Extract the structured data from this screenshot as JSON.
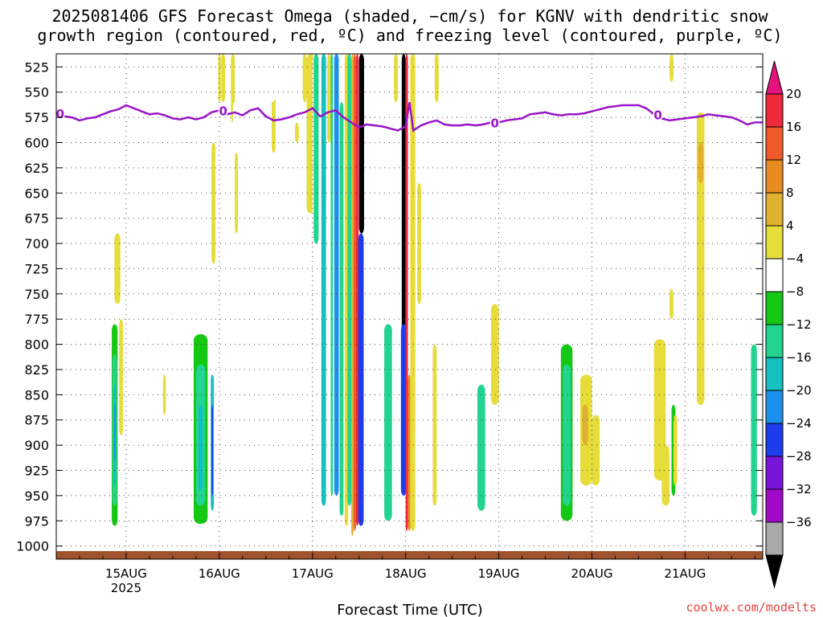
{
  "chart_data": {
    "type": "heatmap",
    "title_lines": [
      "2025081406 GFS Forecast Omega (shaded, −cm/s) for KGNV with dendritic snow",
      "growth region (contoured, red, ºC) and freezing level (contoured, purple, ºC)"
    ],
    "xlabel": "Forecast Time (UTC)",
    "credit": "coolwx.com/modelts",
    "y_axis": {
      "reversed": true,
      "range": [
        1013,
        512
      ],
      "ticks": [
        525,
        550,
        575,
        600,
        625,
        650,
        675,
        700,
        725,
        750,
        775,
        800,
        825,
        850,
        875,
        900,
        925,
        950,
        975,
        1000
      ]
    },
    "x_axis": {
      "range_hours": [
        0,
        182
      ],
      "ticks": [
        {
          "hour": 18,
          "label": "15AUG",
          "sub": "2025"
        },
        {
          "hour": 42,
          "label": "16AUG",
          "sub": ""
        },
        {
          "hour": 66,
          "label": "17AUG",
          "sub": ""
        },
        {
          "hour": 90,
          "label": "18AUG",
          "sub": ""
        },
        {
          "hour": 114,
          "label": "19AUG",
          "sub": ""
        },
        {
          "hour": 138,
          "label": "20AUG",
          "sub": ""
        },
        {
          "hour": 162,
          "label": "21AUG",
          "sub": ""
        }
      ]
    },
    "grid": true,
    "colorbar": {
      "labels": [
        "20",
        "16",
        "12",
        "8",
        "4",
        "−4",
        "−8",
        "−12",
        "−16",
        "−20",
        "−24",
        "−28",
        "−32",
        "−36"
      ],
      "top_color": "#e0147a",
      "bottom_color": "#000000",
      "colors": [
        "#ee2a3c",
        "#f05a28",
        "#e88a20",
        "#e0b030",
        "#e6dc3a",
        "#ffffff",
        "#14c814",
        "#22d490",
        "#16c0c0",
        "#1c90ee",
        "#1c3cee",
        "#7a14d8",
        "#a00ac8",
        "#a8a8a8"
      ]
    },
    "freezing_level": {
      "color": "#9a14c8",
      "label": "0",
      "points": [
        [
          0,
          571
        ],
        [
          2,
          574
        ],
        [
          4,
          575
        ],
        [
          6,
          578
        ],
        [
          8,
          576
        ],
        [
          10,
          575
        ],
        [
          12,
          572
        ],
        [
          14,
          569
        ],
        [
          16,
          567
        ],
        [
          18,
          563
        ],
        [
          20,
          566
        ],
        [
          22,
          569
        ],
        [
          24,
          572
        ],
        [
          26,
          571
        ],
        [
          28,
          573
        ],
        [
          30,
          576
        ],
        [
          32,
          577
        ],
        [
          34,
          575
        ],
        [
          36,
          577
        ],
        [
          38,
          575
        ],
        [
          40,
          570
        ],
        [
          42,
          568
        ],
        [
          44,
          572
        ],
        [
          46,
          570
        ],
        [
          48,
          573
        ],
        [
          50,
          568
        ],
        [
          52,
          566
        ],
        [
          54,
          574
        ],
        [
          56,
          578
        ],
        [
          58,
          577
        ],
        [
          60,
          575
        ],
        [
          62,
          572
        ],
        [
          64,
          570
        ],
        [
          66,
          566
        ],
        [
          67,
          570
        ],
        [
          68,
          574
        ],
        [
          70,
          570
        ],
        [
          72,
          568
        ],
        [
          74,
          575
        ],
        [
          76,
          580
        ],
        [
          78,
          585
        ],
        [
          80,
          582
        ],
        [
          82,
          583
        ],
        [
          84,
          584
        ],
        [
          86,
          586
        ],
        [
          88,
          588
        ],
        [
          90,
          584
        ],
        [
          91,
          560
        ],
        [
          92,
          588
        ],
        [
          94,
          583
        ],
        [
          96,
          580
        ],
        [
          98,
          578
        ],
        [
          100,
          582
        ],
        [
          102,
          583
        ],
        [
          104,
          583
        ],
        [
          106,
          582
        ],
        [
          108,
          583
        ],
        [
          110,
          582
        ],
        [
          112,
          580
        ],
        [
          114,
          580
        ],
        [
          116,
          578
        ],
        [
          118,
          577
        ],
        [
          120,
          576
        ],
        [
          122,
          572
        ],
        [
          124,
          571
        ],
        [
          126,
          570
        ],
        [
          128,
          572
        ],
        [
          130,
          573
        ],
        [
          132,
          572
        ],
        [
          134,
          572
        ],
        [
          136,
          571
        ],
        [
          138,
          569
        ],
        [
          140,
          567
        ],
        [
          142,
          565
        ],
        [
          144,
          564
        ],
        [
          146,
          563
        ],
        [
          148,
          563
        ],
        [
          150,
          563
        ],
        [
          152,
          566
        ],
        [
          154,
          572
        ],
        [
          156,
          576
        ],
        [
          158,
          578
        ],
        [
          160,
          577
        ],
        [
          162,
          576
        ],
        [
          164,
          575
        ],
        [
          166,
          574
        ],
        [
          168,
          572
        ],
        [
          170,
          573
        ],
        [
          172,
          574
        ],
        [
          174,
          575
        ],
        [
          176,
          578
        ],
        [
          178,
          582
        ],
        [
          180,
          580
        ],
        [
          182,
          580
        ]
      ],
      "label_hours": [
        1,
        43,
        113,
        155
      ]
    },
    "terrain_color": "#a0522d",
    "shaded_regions": [
      {
        "cls": "-4",
        "x0": 14.0,
        "x1": 16.0,
        "p0": 765,
        "p1": 988
      },
      {
        "cls": "-8",
        "x0": 14.3,
        "x1": 15.8,
        "p0": 780,
        "p1": 980
      },
      {
        "cls": "-12",
        "x0": 14.5,
        "x1": 15.6,
        "p0": 810,
        "p1": 960
      },
      {
        "cls": "-16",
        "x0": 14.7,
        "x1": 15.4,
        "p0": 840,
        "p1": 940
      },
      {
        "cls": "-20",
        "x0": 14.9,
        "x1": 15.3,
        "p0": 860,
        "p1": 915
      },
      {
        "cls": "4",
        "x0": 15.0,
        "x1": 16.5,
        "p0": 690,
        "p1": 760
      },
      {
        "cls": "4",
        "x0": 16.2,
        "x1": 17.2,
        "p0": 775,
        "p1": 890
      },
      {
        "cls": "4",
        "x0": 27.5,
        "x1": 28.2,
        "p0": 830,
        "p1": 870
      },
      {
        "cls": "-4",
        "x0": 35.0,
        "x1": 39.5,
        "p0": 770,
        "p1": 988
      },
      {
        "cls": "-8",
        "x0": 35.4,
        "x1": 39.0,
        "p0": 790,
        "p1": 978
      },
      {
        "cls": "-12",
        "x0": 36.0,
        "x1": 38.4,
        "p0": 820,
        "p1": 960
      },
      {
        "cls": "-16",
        "x0": 36.6,
        "x1": 37.8,
        "p0": 860,
        "p1": 945
      },
      {
        "cls": "-4",
        "x0": 39.6,
        "x1": 41.2,
        "p0": 790,
        "p1": 975
      },
      {
        "cls": "-16",
        "x0": 39.8,
        "x1": 40.6,
        "p0": 830,
        "p1": 965
      },
      {
        "cls": "-24",
        "x0": 40.0,
        "x1": 40.4,
        "p0": 860,
        "p1": 950
      },
      {
        "cls": "4",
        "x0": 40.0,
        "x1": 41.0,
        "p0": 600,
        "p1": 720
      },
      {
        "cls": "-4",
        "x0": 41.5,
        "x1": 42.7,
        "p0": 512,
        "p1": 960
      },
      {
        "cls": "4",
        "x0": 41.7,
        "x1": 42.4,
        "p0": 512,
        "p1": 560
      },
      {
        "cls": "4",
        "x0": 42.5,
        "x1": 43.5,
        "p0": 512,
        "p1": 560
      },
      {
        "cls": "-4",
        "x0": 44.0,
        "x1": 45.0,
        "p0": 512,
        "p1": 570
      },
      {
        "cls": "-4",
        "x0": 44.5,
        "x1": 45.5,
        "p0": 640,
        "p1": 700
      },
      {
        "cls": "4",
        "x0": 45.0,
        "x1": 46.0,
        "p0": 512,
        "p1": 580
      },
      {
        "cls": "-4",
        "x0": 45.5,
        "x1": 46.5,
        "p0": 560,
        "p1": 610
      },
      {
        "cls": "-4",
        "x0": 45.0,
        "x1": 46.0,
        "p0": 680,
        "p1": 710
      },
      {
        "cls": "4",
        "x0": 46.0,
        "x1": 46.8,
        "p0": 610,
        "p1": 690
      },
      {
        "cls": "-4",
        "x0": 47.0,
        "x1": 48.2,
        "p0": 560,
        "p1": 760
      },
      {
        "cls": "-4",
        "x0": 49.0,
        "x1": 50.0,
        "p0": 512,
        "p1": 590
      },
      {
        "cls": "-4",
        "x0": 52.0,
        "x1": 53.5,
        "p0": 580,
        "p1": 640
      },
      {
        "cls": "4",
        "x0": 55.5,
        "x1": 56.5,
        "p0": 540,
        "p1": 610
      },
      {
        "cls": "-4",
        "x0": 54.5,
        "x1": 56.5,
        "p0": 512,
        "p1": 560
      },
      {
        "cls": "-4",
        "x0": 57.5,
        "x1": 58.5,
        "p0": 530,
        "p1": 570
      },
      {
        "cls": "-4",
        "x0": 58.0,
        "x1": 59.0,
        "p0": 890,
        "p1": 940
      },
      {
        "cls": "4",
        "x0": 61.5,
        "x1": 62.5,
        "p0": 580,
        "p1": 600
      },
      {
        "cls": "-4",
        "x0": 62.0,
        "x1": 63.0,
        "p0": 620,
        "p1": 680
      },
      {
        "cls": "4",
        "x0": 63.5,
        "x1": 64.5,
        "p0": 512,
        "p1": 560
      },
      {
        "cls": "-4",
        "x0": 63.0,
        "x1": 64.5,
        "p0": 750,
        "p1": 985
      },
      {
        "cls": "4",
        "x0": 64.5,
        "x1": 66.5,
        "p0": 512,
        "p1": 670
      },
      {
        "cls": "-4",
        "x0": 66.0,
        "x1": 68.0,
        "p0": 512,
        "p1": 988
      },
      {
        "cls": "-12",
        "x0": 66.3,
        "x1": 67.6,
        "p0": 512,
        "p1": 700
      },
      {
        "cls": "-4",
        "x0": 68.0,
        "x1": 69.8,
        "p0": 512,
        "p1": 970
      },
      {
        "cls": "-16",
        "x0": 68.3,
        "x1": 69.5,
        "p0": 512,
        "p1": 960
      },
      {
        "cls": "4",
        "x0": 69.8,
        "x1": 70.8,
        "p0": 512,
        "p1": 600
      },
      {
        "cls": "-4",
        "x0": 70.5,
        "x1": 71.5,
        "p0": 760,
        "p1": 980
      },
      {
        "cls": "-12",
        "x0": 70.7,
        "x1": 71.3,
        "p0": 512,
        "p1": 950
      },
      {
        "cls": "-20",
        "x0": 71.6,
        "x1": 72.8,
        "p0": 512,
        "p1": 950
      },
      {
        "cls": "-4",
        "x0": 72.8,
        "x1": 74.2,
        "p0": 512,
        "p1": 985
      },
      {
        "cls": "-12",
        "x0": 73.0,
        "x1": 74.0,
        "p0": 560,
        "p1": 970
      },
      {
        "cls": "4",
        "x0": 74.3,
        "x1": 75.2,
        "p0": 512,
        "p1": 980
      },
      {
        "cls": "-12",
        "x0": 75.0,
        "x1": 76.0,
        "p0": 512,
        "p1": 960
      },
      {
        "cls": "8",
        "x0": 76.0,
        "x1": 76.6,
        "p0": 512,
        "p1": 990
      },
      {
        "cls": "16",
        "x0": 76.6,
        "x1": 77.2,
        "p0": 512,
        "p1": 985
      },
      {
        "cls": "20",
        "x0": 77.2,
        "x1": 77.9,
        "p0": 512,
        "p1": 980
      },
      {
        "cls": "-36",
        "x0": 78.0,
        "x1": 79.3,
        "p0": 512,
        "p1": 690
      },
      {
        "cls": "-24",
        "x0": 77.8,
        "x1": 79.2,
        "p0": 690,
        "p1": 980
      },
      {
        "cls": "-4",
        "x0": 79.3,
        "x1": 80.0,
        "p0": 512,
        "p1": 560
      },
      {
        "cls": "-4",
        "x0": 80.0,
        "x1": 81.0,
        "p0": 880,
        "p1": 975
      },
      {
        "cls": "-4",
        "x0": 81.5,
        "x1": 82.5,
        "p0": 500,
        "p1": 560
      },
      {
        "cls": "-4",
        "x0": 82.0,
        "x1": 83.0,
        "p0": 600,
        "p1": 650
      },
      {
        "cls": "-4",
        "x0": 84.0,
        "x1": 87.0,
        "p0": 630,
        "p1": 985
      },
      {
        "cls": "-12",
        "x0": 84.5,
        "x1": 86.5,
        "p0": 780,
        "p1": 975
      },
      {
        "cls": "4",
        "x0": 87.0,
        "x1": 88.0,
        "p0": 512,
        "p1": 560
      },
      {
        "cls": "-4",
        "x0": 87.0,
        "x1": 89.0,
        "p0": 560,
        "p1": 990
      },
      {
        "cls": "-4",
        "x0": 88.0,
        "x1": 89.0,
        "p0": 660,
        "p1": 740
      },
      {
        "cls": "-36",
        "x0": 89.0,
        "x1": 90.0,
        "p0": 512,
        "p1": 900
      },
      {
        "cls": "-24",
        "x0": 88.8,
        "x1": 90.2,
        "p0": 780,
        "p1": 950
      },
      {
        "cls": "20",
        "x0": 90.0,
        "x1": 90.6,
        "p0": 512,
        "p1": 985
      },
      {
        "cls": "12",
        "x0": 90.6,
        "x1": 91.3,
        "p0": 830,
        "p1": 985
      },
      {
        "cls": "4",
        "x0": 91.2,
        "x1": 92.5,
        "p0": 512,
        "p1": 985
      },
      {
        "cls": "-4",
        "x0": 92.5,
        "x1": 93.5,
        "p0": 880,
        "p1": 940
      },
      {
        "cls": "4",
        "x0": 93.0,
        "x1": 94.0,
        "p0": 640,
        "p1": 760
      },
      {
        "cls": "-4",
        "x0": 94.0,
        "x1": 95.0,
        "p0": 800,
        "p1": 850
      },
      {
        "cls": "-4",
        "x0": 95.0,
        "x1": 96.0,
        "p0": 640,
        "p1": 810
      },
      {
        "cls": "4",
        "x0": 97.0,
        "x1": 98.0,
        "p0": 800,
        "p1": 960
      },
      {
        "cls": "4",
        "x0": 97.5,
        "x1": 98.5,
        "p0": 512,
        "p1": 560
      },
      {
        "cls": "-4",
        "x0": 108.0,
        "x1": 111.0,
        "p0": 780,
        "p1": 985
      },
      {
        "cls": "-12",
        "x0": 108.5,
        "x1": 110.5,
        "p0": 840,
        "p1": 965
      },
      {
        "cls": "-4",
        "x0": 112.0,
        "x1": 113.0,
        "p0": 920,
        "p1": 960
      },
      {
        "cls": "4",
        "x0": 112.0,
        "x1": 114.0,
        "p0": 760,
        "p1": 860
      },
      {
        "cls": "-4",
        "x0": 129.5,
        "x1": 133.5,
        "p0": 785,
        "p1": 985
      },
      {
        "cls": "-8",
        "x0": 130.0,
        "x1": 133.0,
        "p0": 800,
        "p1": 975
      },
      {
        "cls": "-12",
        "x0": 130.5,
        "x1": 132.5,
        "p0": 820,
        "p1": 960
      },
      {
        "cls": "-4",
        "x0": 133.5,
        "x1": 135.0,
        "p0": 800,
        "p1": 975
      },
      {
        "cls": "4",
        "x0": 135.0,
        "x1": 138.0,
        "p0": 830,
        "p1": 940
      },
      {
        "cls": "8",
        "x0": 135.5,
        "x1": 137.0,
        "p0": 860,
        "p1": 900
      },
      {
        "cls": "4",
        "x0": 138.0,
        "x1": 140.0,
        "p0": 870,
        "p1": 940
      },
      {
        "cls": "-4",
        "x0": 141.0,
        "x1": 142.5,
        "p0": 512,
        "p1": 550
      },
      {
        "cls": "4",
        "x0": 154.0,
        "x1": 157.0,
        "p0": 795,
        "p1": 935
      },
      {
        "cls": "4",
        "x0": 156.0,
        "x1": 158.0,
        "p0": 900,
        "p1": 960
      },
      {
        "cls": "-4",
        "x0": 158.0,
        "x1": 159.5,
        "p0": 820,
        "p1": 965
      },
      {
        "cls": "-8",
        "x0": 158.5,
        "x1": 159.5,
        "p0": 860,
        "p1": 950
      },
      {
        "cls": "4",
        "x0": 159.0,
        "x1": 160.0,
        "p0": 870,
        "p1": 940
      },
      {
        "cls": "4",
        "x0": 158.0,
        "x1": 159.0,
        "p0": 745,
        "p1": 775
      },
      {
        "cls": "4",
        "x0": 158.0,
        "x1": 159.0,
        "p0": 512,
        "p1": 540
      },
      {
        "cls": "4",
        "x0": 165.0,
        "x1": 167.0,
        "p0": 570,
        "p1": 860
      },
      {
        "cls": "8",
        "x0": 165.3,
        "x1": 166.7,
        "p0": 600,
        "p1": 640
      },
      {
        "cls": "-4",
        "x0": 179.0,
        "x1": 182.0,
        "p0": 735,
        "p1": 985
      },
      {
        "cls": "-12",
        "x0": 179.0,
        "x1": 180.5,
        "p0": 800,
        "p1": 970
      }
    ]
  }
}
